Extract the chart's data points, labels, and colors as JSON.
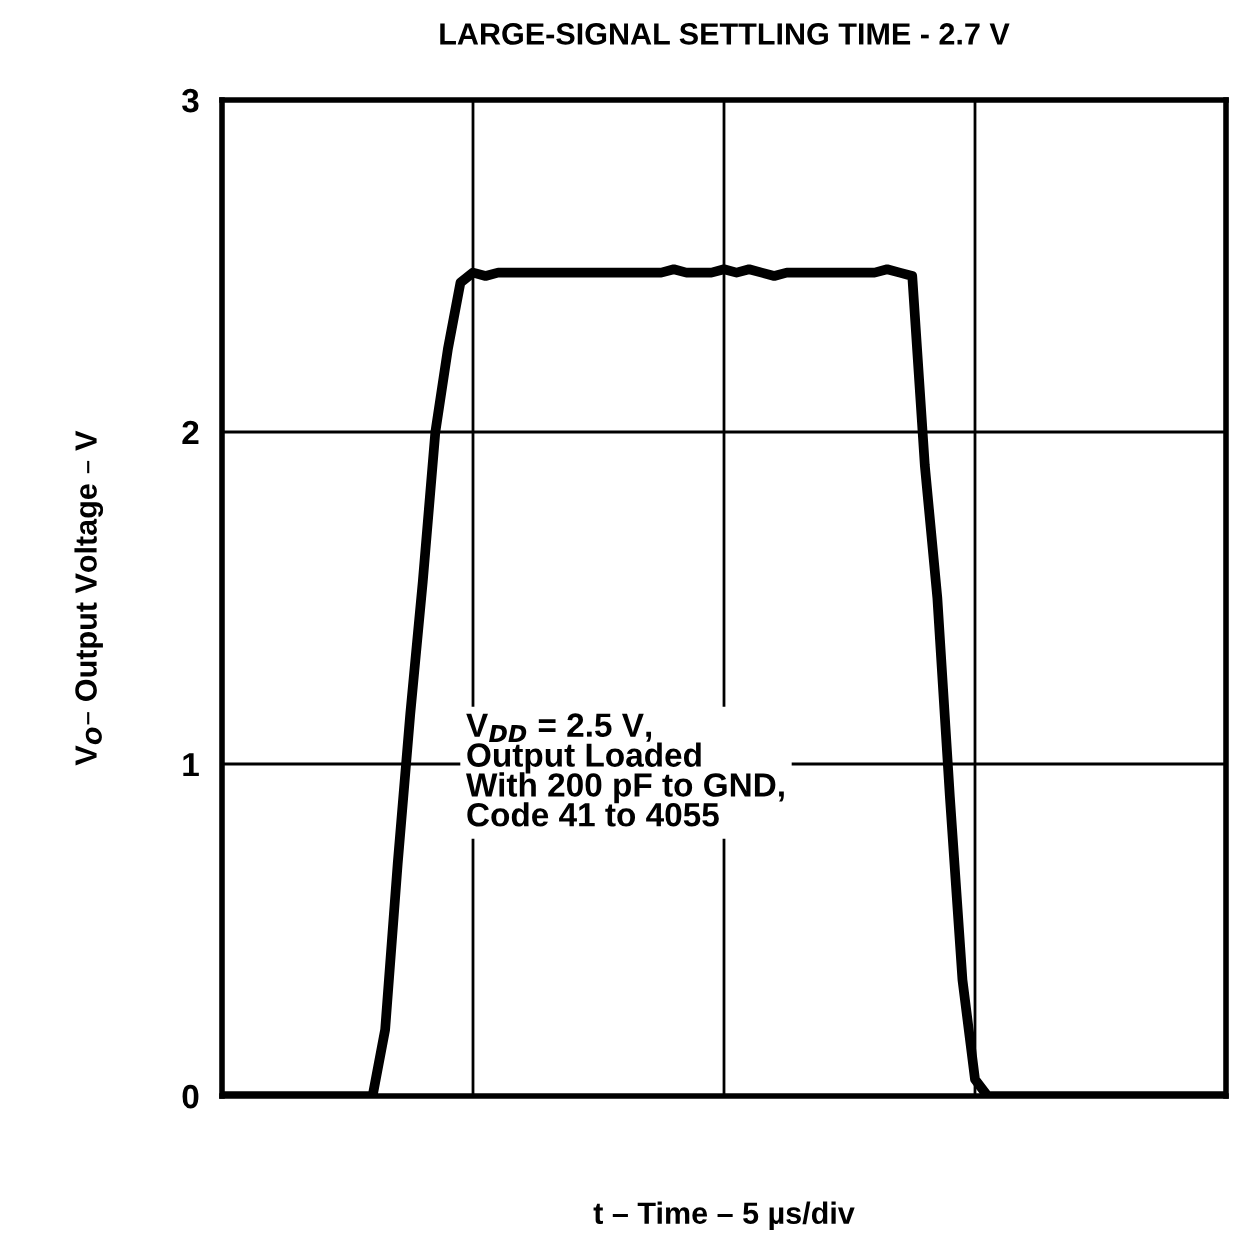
{
  "chart_data": {
    "type": "line",
    "title": "LARGE-SIGNAL SETTLING TIME - 2.7 V",
    "xlabel": "t – Time – 5 µs/div",
    "ylabel": "V$_{O}$– Output Voltage – V",
    "categories": [
      null,
      null,
      null,
      null,
      null,
      null,
      null,
      null,
      null,
      null,
      null,
      null,
      null,
      null,
      null,
      null,
      null,
      null,
      null,
      null,
      null,
      null,
      null,
      null,
      null,
      null,
      null,
      null,
      null,
      null,
      null,
      null,
      null,
      null,
      null,
      null,
      null,
      null,
      null,
      null,
      null,
      null,
      null,
      null,
      null,
      null,
      null,
      null,
      null,
      null,
      null,
      null,
      null,
      null,
      null,
      null,
      null,
      null,
      null,
      null,
      null,
      null,
      null,
      null,
      null,
      null,
      null,
      null,
      null,
      null,
      null,
      null,
      null,
      null,
      null,
      null,
      null,
      null,
      null,
      null,
      null
    ],
    "series": [
      {
        "color": "#000000",
        "values": [
          0,
          0,
          0,
          0,
          0,
          0,
          0,
          0,
          0,
          0,
          0,
          0,
          0,
          0.2,
          0.7,
          1.15,
          1.55,
          2.0,
          2.25,
          2.45,
          2.48,
          2.47,
          2.48,
          2.48,
          2.48,
          2.48,
          2.48,
          2.48,
          2.48,
          2.48,
          2.48,
          2.48,
          2.48,
          2.48,
          2.48,
          2.48,
          2.49,
          2.48,
          2.48,
          2.48,
          2.49,
          2.48,
          2.49,
          2.48,
          2.47,
          2.48,
          2.48,
          2.48,
          2.48,
          2.48,
          2.48,
          2.48,
          2.48,
          2.49,
          2.48,
          2.47,
          1.9,
          1.5,
          0.9,
          0.35,
          0.05,
          0,
          0,
          0,
          0,
          0,
          0,
          0,
          0,
          0,
          0,
          0,
          0,
          0,
          0,
          0,
          0,
          0,
          0,
          0,
          0
        ]
      }
    ],
    "ylim": [
      0,
      3
    ],
    "yticks": [
      0,
      1,
      2,
      3
    ],
    "grid": true,
    "line_style": "solid",
    "marker": "none",
    "annotations": [
      "V$_{DD}$ = 2.5 V,\nOutput Loaded\nWith 200 pF to GND,\nCode 41 to 4055"
    ]
  }
}
